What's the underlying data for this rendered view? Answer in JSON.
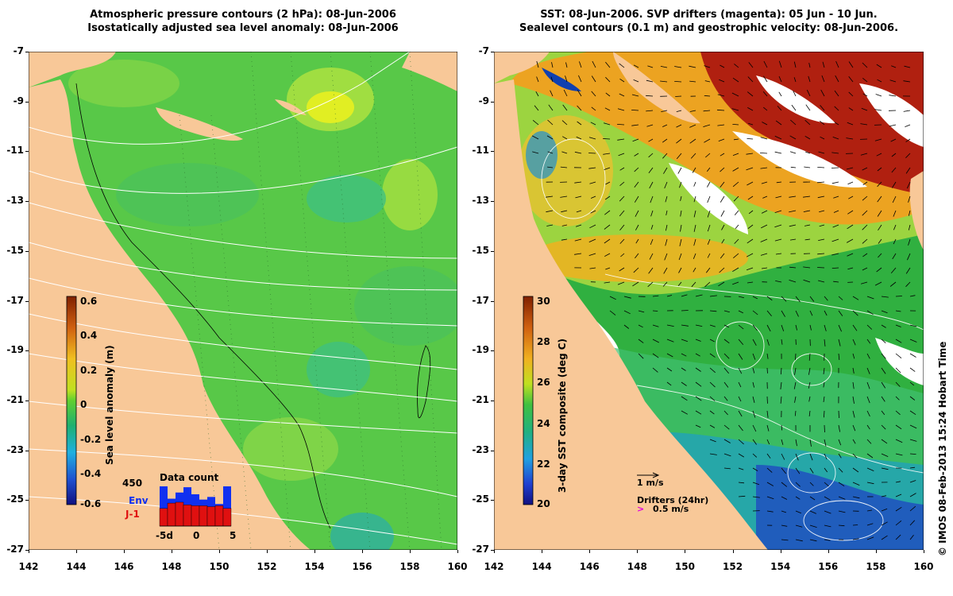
{
  "left_panel": {
    "title_line1": "Atmospheric pressure contours (2 hPa): 08-Jun-2006",
    "title_line2": "Isostatically adjusted sea level anomaly: 08-Jun-2006",
    "colorbar": {
      "label": "Sea level anomaly (m)",
      "ticks": [
        "0.6",
        "0.4",
        "0.2",
        "0",
        "-0.2",
        "-0.4",
        "-0.6"
      ]
    },
    "inset": {
      "title": "Data count",
      "max_label": "450",
      "series_env": "Env",
      "series_j1": "J-1",
      "x_labels": [
        "-5d",
        "0",
        "5"
      ],
      "env_counts": [
        450,
        310,
        380,
        440,
        360,
        300,
        330,
        250,
        450
      ],
      "j1_counts": [
        200,
        260,
        270,
        240,
        230,
        230,
        220,
        230,
        200
      ]
    }
  },
  "right_panel": {
    "title_line1": "SST: 08-Jun-2006. SVP drifters (magenta): 05 Jun - 10 Jun.",
    "title_line2": "Sealevel contours (0.1 m) and geostrophic velocity: 08-Jun-2006.",
    "colorbar": {
      "label": "3-day SST composite (deg C)",
      "ticks": [
        "30",
        "28",
        "26",
        "24",
        "22",
        "20"
      ]
    },
    "velocity_legend": "1 m/s",
    "drifter_legend_title": "Drifters (24hr)",
    "drifter_legend_symbol": ">",
    "drifter_legend_value": "0.5 m/s"
  },
  "axes": {
    "lat_labels": [
      "-7",
      "-9",
      "-11",
      "-13",
      "-15",
      "-17",
      "-19",
      "-21",
      "-23",
      "-25",
      "-27"
    ],
    "lon_labels": [
      "142",
      "144",
      "146",
      "148",
      "150",
      "152",
      "154",
      "156",
      "158",
      "160"
    ]
  },
  "credit": "© IMOS 08-Feb-2013 15:24 Hobart Time",
  "colors": {
    "land": "#f8c898",
    "ocean_green": "#58c848",
    "sst_green": "#30b040",
    "sst_orange": "#f0a020",
    "sst_red": "#b02010",
    "sst_blue": "#1040b0",
    "env_bar": "#1030f0",
    "j1_bar": "#e01010"
  }
}
